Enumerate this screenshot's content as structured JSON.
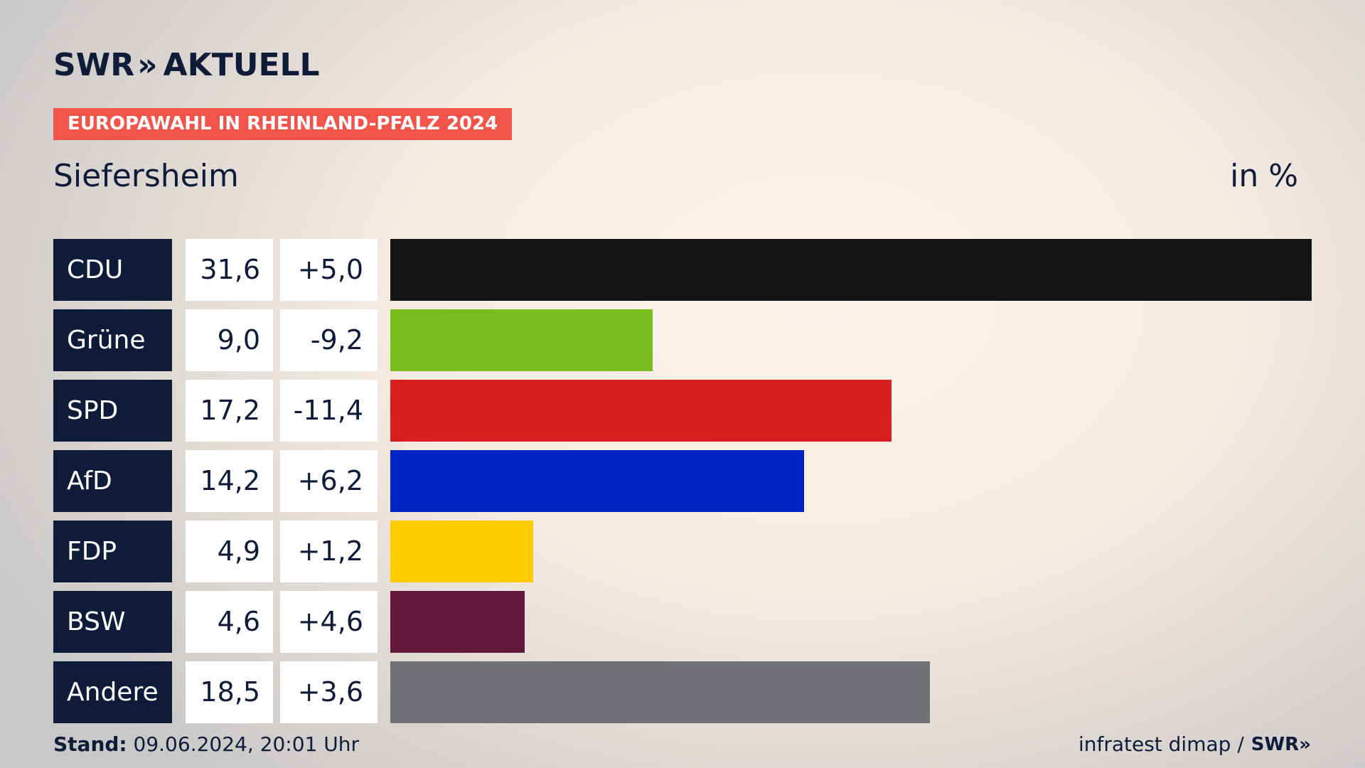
{
  "header": {
    "logo_text": "SWR",
    "logo_chevrons": "»",
    "logo_suffix": "AKTUELL",
    "banner": "EUROPAWAHL IN RHEINLAND-PFALZ 2024",
    "place": "Siefersheim",
    "unit": "in %"
  },
  "chart_data": {
    "type": "bar",
    "orientation": "horizontal",
    "categories": [
      "CDU",
      "Grüne",
      "SPD",
      "AfD",
      "FDP",
      "BSW",
      "Andere"
    ],
    "values": [
      31.6,
      9.0,
      17.2,
      14.2,
      4.9,
      4.6,
      18.5
    ],
    "value_labels": [
      "31,6",
      "9,0",
      "17,2",
      "14,2",
      "4,9",
      "4,6",
      "18,5"
    ],
    "diff_labels": [
      "+5,0",
      "-9,2",
      "-11,4",
      "+6,2",
      "+1,2",
      "+4,6",
      "+3,6"
    ],
    "colors": [
      "#141414",
      "#7bbd1e",
      "#d71f1f",
      "#0023c4",
      "#ffcc00",
      "#65183e",
      "#707174"
    ],
    "xlim": [
      0,
      31.6
    ]
  },
  "footer": {
    "stand_label": "Stand:",
    "stand_value": "09.06.2024, 20:01 Uhr",
    "source": "infratest dimap /",
    "source_logo": "SWR",
    "source_logo_chevrons": "»"
  }
}
